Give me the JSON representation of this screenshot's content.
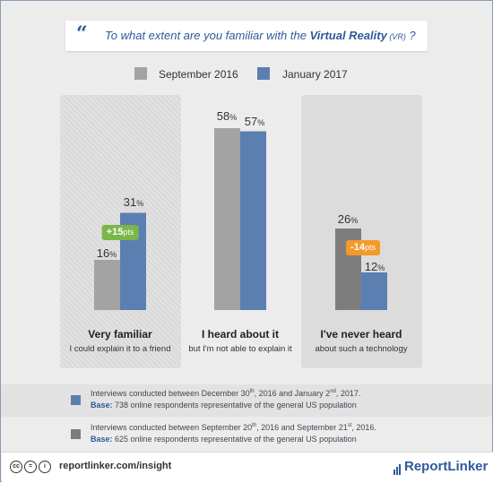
{
  "question": {
    "prefix": "To what extent are you familiar with the ",
    "emphasis": "Virtual Reality",
    "abbr": " (VR)",
    "suffix": " ?"
  },
  "colors": {
    "sep2016": "#a3a3a3",
    "jan2017": "#5b7fb1",
    "sep2016_dark": "#7d7d7d",
    "positive": "#7ab648",
    "negative": "#f39a2b",
    "brand": "#2f5a9a"
  },
  "chart_data": {
    "type": "bar",
    "categories": [
      "Very familiar",
      "I heard about it",
      "I've never heard"
    ],
    "category_subtitles": [
      "I could explain it to a friend",
      "but I'm not able to explain it",
      "about such a technology"
    ],
    "series": [
      {
        "name": "September 2016",
        "values": [
          16,
          58,
          26
        ]
      },
      {
        "name": "January 2017",
        "values": [
          31,
          57,
          12
        ]
      }
    ],
    "value_suffix": "%",
    "annotations": [
      {
        "category": "Very familiar",
        "label": "+15",
        "unit": "pts"
      },
      {
        "category": "I've never heard",
        "label": "-14",
        "unit": "pts"
      }
    ],
    "ylim": [
      0,
      60
    ],
    "legend": "top-center",
    "grid": false
  },
  "notes": [
    {
      "line1_a": "Interviews conducted between December 30",
      "sup1": "th",
      "line1_b": ", 2016 and January 2",
      "sup2": "nd",
      "line1_c": ", 2017.",
      "base_label": "Base:",
      "base_text": " 738 online respondents representative of the general US population"
    },
    {
      "line1_a": "Interviews conducted between September 20",
      "sup1": "th",
      "line1_b": ", 2016 and September 21",
      "sup2": "st",
      "line1_c": ", 2016.",
      "base_label": "Base:",
      "base_text": " 625 online respondents representative of the general US population"
    }
  ],
  "footer": {
    "cc_icons": [
      "cc",
      "=",
      "i"
    ],
    "website": "reportlinker.com/insight",
    "brand": "ReportLinker"
  }
}
